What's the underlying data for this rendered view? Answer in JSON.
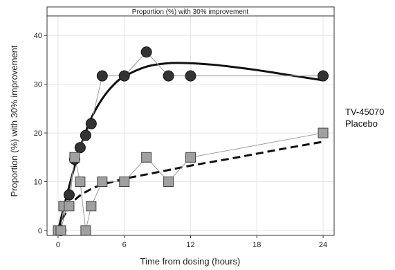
{
  "chart_data": {
    "type": "scatter",
    "strip_title": "Proportion (%) with 30% improvement",
    "xlabel": "Time from dosing (hours)",
    "ylabel": "Proportion (%) with 30% improvement",
    "xlim": [
      -1,
      25
    ],
    "ylim": [
      -1,
      44
    ],
    "xticks": [
      0,
      6,
      12,
      18,
      24
    ],
    "yticks": [
      0,
      10,
      20,
      30,
      40
    ],
    "grid": true,
    "legend_position": "right",
    "series": [
      {
        "name": "TV-45070",
        "marker": "circle",
        "color": "#333333",
        "fit_style": "solid",
        "x": [
          0.25,
          1,
          1.5,
          2,
          2.5,
          3,
          4,
          6,
          8,
          10,
          12,
          24
        ],
        "y": [
          0,
          7.3,
          14.6,
          17,
          19.5,
          21.9,
          31.7,
          31.7,
          36.6,
          31.7,
          31.7,
          31.7
        ],
        "fit_x": [
          0,
          1,
          2,
          3,
          4,
          5,
          6,
          8,
          10,
          12,
          14,
          16,
          18,
          20,
          22,
          24
        ],
        "fit_y": [
          0,
          9,
          17,
          23,
          27,
          29.8,
          31.6,
          33.6,
          34.3,
          34.3,
          34,
          33.5,
          32.9,
          32.2,
          31.5,
          30.8
        ]
      },
      {
        "name": "Placebo",
        "marker": "square",
        "color": "#a0a0a0",
        "fit_style": "dashed",
        "x": [
          0,
          0.25,
          0.5,
          1,
          1.5,
          2,
          2.5,
          3,
          4,
          6,
          8,
          10,
          12,
          24
        ],
        "y": [
          0,
          0,
          5,
          5,
          15,
          10,
          0,
          5,
          10,
          10,
          15,
          10,
          15,
          20
        ],
        "fit_x": [
          0,
          0.5,
          1,
          1.5,
          2,
          3,
          4,
          6,
          8,
          10,
          12,
          16,
          20,
          24
        ],
        "fit_y": [
          0,
          2.8,
          4.8,
          6.2,
          7.2,
          8.5,
          9.4,
          10.6,
          11.5,
          12.4,
          13.3,
          14.9,
          16.6,
          18.2
        ]
      }
    ]
  }
}
